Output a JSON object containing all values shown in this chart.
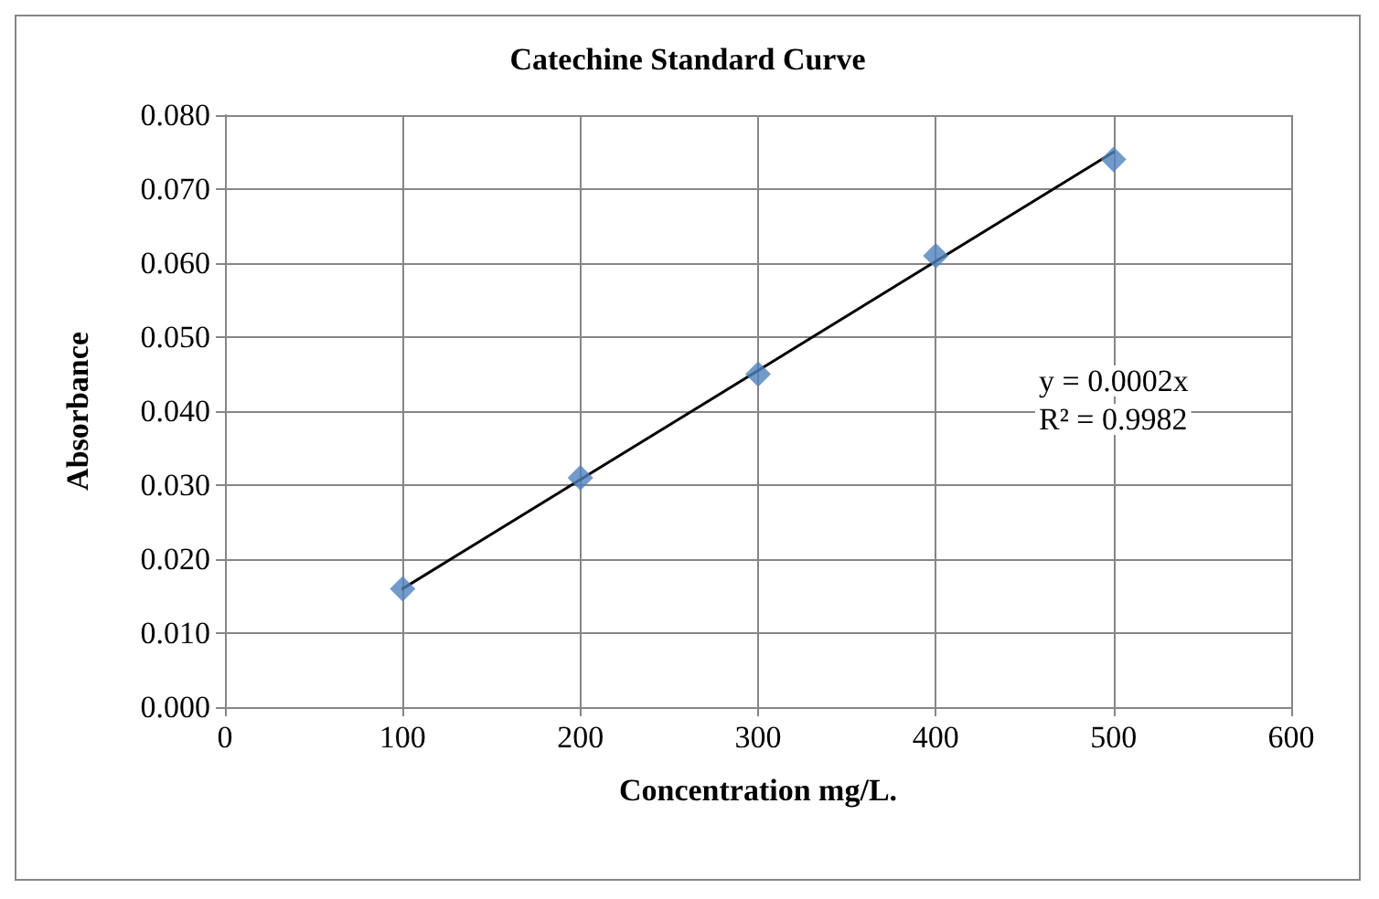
{
  "chart_data": {
    "type": "scatter",
    "title": "Catechine Standard Curve",
    "xlabel": "Concentration mg/L.",
    "ylabel": "Absorbance",
    "series": [
      {
        "color": "#4f81bd",
        "marker": "diamond",
        "x": [
          100,
          200,
          300,
          400,
          500
        ],
        "values": [
          0.016,
          0.031,
          0.045,
          0.061,
          0.074
        ]
      },
      {
        "type": "line",
        "color": "#000000",
        "marker": "none",
        "line_style": "solid",
        "x": [
          100,
          500
        ],
        "values": [
          0.016,
          0.075
        ]
      }
    ],
    "xlim": [
      0,
      600
    ],
    "xticks": [
      0,
      100,
      200,
      300,
      400,
      500,
      600
    ],
    "ylim": [
      0,
      0.08
    ],
    "yticks": [
      {
        "value": 0,
        "label": "0.000"
      },
      {
        "value": 0.01,
        "label": "0.010"
      },
      {
        "value": 0.02,
        "label": "0.020"
      },
      {
        "value": 0.03,
        "label": "0.030"
      },
      {
        "value": 0.04,
        "label": "0.040"
      },
      {
        "value": 0.05,
        "label": "0.050"
      },
      {
        "value": 0.06,
        "label": "0.060"
      },
      {
        "value": 0.07,
        "label": "0.070"
      },
      {
        "value": 0.08,
        "label": "0.080"
      }
    ],
    "grid": true,
    "annotations": [
      "y = 0.0002x",
      "R² = 0.9982"
    ]
  }
}
